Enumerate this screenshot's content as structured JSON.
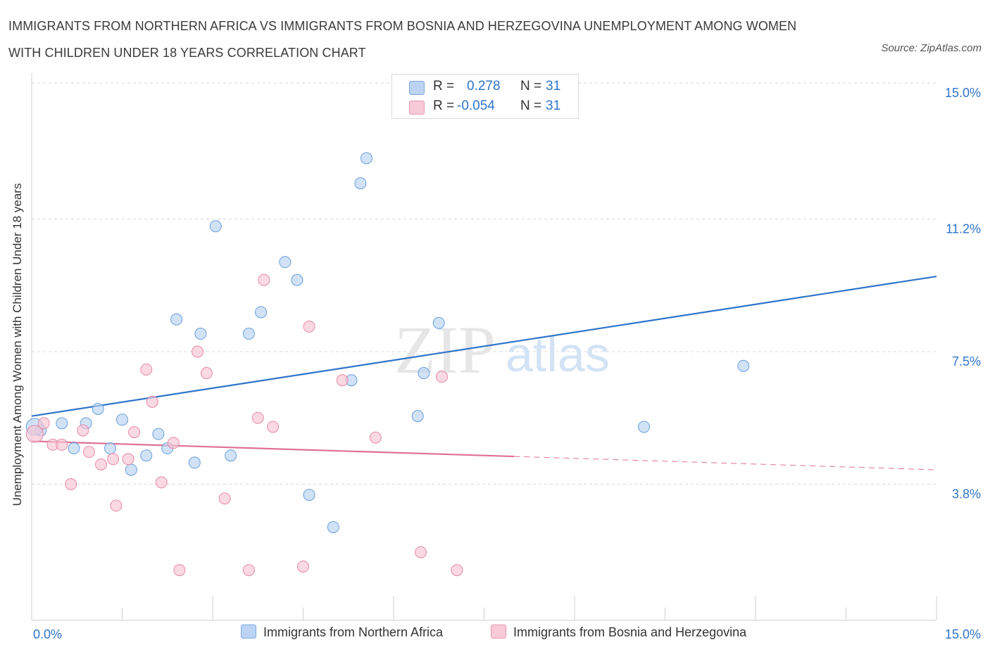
{
  "title_line1": "IMMIGRANTS FROM NORTHERN AFRICA VS IMMIGRANTS FROM BOSNIA AND HERZEGOVINA UNEMPLOYMENT AMONG WOMEN",
  "title_line2": "WITH CHILDREN UNDER 18 YEARS CORRELATION CHART",
  "source": "Source: ZipAtlas.com",
  "watermark": {
    "zip": "ZIP",
    "atlas": "atlas"
  },
  "legend": {
    "rows": [
      {
        "r_label": "R =",
        "r_value": "0.278",
        "n_label": "N =",
        "n_value": "31",
        "color": "#aac8f0"
      },
      {
        "r_label": "R =",
        "r_value": "-0.054",
        "n_label": "N =",
        "n_value": "31",
        "color": "#f5b8cb"
      }
    ]
  },
  "colors": {
    "blue_fill": "#b9d2f2",
    "blue_stroke": "#6a9fd8",
    "blue_line": "#2e74c9",
    "pink_fill": "#f7c5d4",
    "pink_stroke": "#e58aa8",
    "pink_line": "#e06f96",
    "grid": "#d8d8d8",
    "axis_text": "#2e74c9"
  },
  "chart_data": {
    "type": "scatter",
    "title": "IMMIGRANTS FROM NORTHERN AFRICA VS IMMIGRANTS FROM BOSNIA AND HERZEGOVINA UNEMPLOYMENT AMONG WOMEN WITH CHILDREN UNDER 18 YEARS CORRELATION CHART",
    "xlabel": "",
    "ylabel": "Unemployment Among Women with Children Under 18 years",
    "xlim": [
      0,
      15
    ],
    "ylim": [
      0,
      15
    ],
    "x_tick_labels": [
      "0.0%",
      "15.0%"
    ],
    "y_ticks": [
      3.8,
      7.5,
      11.2,
      15.0
    ],
    "y_tick_labels": [
      "3.8%",
      "7.5%",
      "11.2%",
      "15.0%"
    ],
    "grid": true,
    "legend_position": "top-center",
    "series": [
      {
        "name": "Immigrants from Northern Africa",
        "color": "blue",
        "points": [
          [
            0.15,
            5.3
          ],
          [
            0.5,
            5.5
          ],
          [
            0.7,
            4.8
          ],
          [
            0.9,
            5.5
          ],
          [
            1.1,
            5.9
          ],
          [
            1.3,
            4.8
          ],
          [
            1.5,
            5.6
          ],
          [
            1.65,
            4.2
          ],
          [
            1.9,
            4.6
          ],
          [
            2.1,
            5.2
          ],
          [
            2.25,
            4.8
          ],
          [
            2.4,
            8.4
          ],
          [
            2.7,
            4.4
          ],
          [
            2.8,
            8.0
          ],
          [
            3.05,
            11.0
          ],
          [
            3.3,
            4.6
          ],
          [
            3.6,
            8.0
          ],
          [
            3.8,
            8.6
          ],
          [
            4.2,
            10.0
          ],
          [
            4.4,
            9.5
          ],
          [
            4.6,
            3.5
          ],
          [
            5.0,
            2.6
          ],
          [
            5.3,
            6.7
          ],
          [
            5.45,
            12.2
          ],
          [
            5.55,
            12.9
          ],
          [
            6.4,
            5.7
          ],
          [
            6.5,
            6.9
          ],
          [
            6.75,
            8.3
          ],
          [
            10.15,
            5.4
          ],
          [
            11.8,
            7.1
          ],
          [
            0.05,
            5.4
          ]
        ],
        "trend": {
          "x": [
            0,
            15
          ],
          "y": [
            5.7,
            9.6
          ]
        }
      },
      {
        "name": "Immigrants from Bosnia and Herzegovina",
        "color": "pink",
        "points": [
          [
            0.05,
            5.2
          ],
          [
            0.2,
            5.5
          ],
          [
            0.35,
            4.9
          ],
          [
            0.5,
            4.9
          ],
          [
            0.65,
            3.8
          ],
          [
            0.85,
            5.3
          ],
          [
            0.95,
            4.7
          ],
          [
            1.15,
            4.35
          ],
          [
            1.35,
            4.5
          ],
          [
            1.4,
            3.2
          ],
          [
            1.6,
            4.5
          ],
          [
            1.7,
            5.25
          ],
          [
            1.9,
            7.0
          ],
          [
            2.0,
            6.1
          ],
          [
            2.15,
            3.85
          ],
          [
            2.35,
            4.95
          ],
          [
            2.45,
            1.4
          ],
          [
            2.75,
            7.5
          ],
          [
            2.9,
            6.9
          ],
          [
            3.2,
            3.4
          ],
          [
            3.6,
            1.4
          ],
          [
            3.75,
            5.65
          ],
          [
            3.85,
            9.5
          ],
          [
            4.0,
            5.4
          ],
          [
            4.5,
            1.5
          ],
          [
            4.6,
            8.2
          ],
          [
            5.15,
            6.7
          ],
          [
            5.7,
            5.1
          ],
          [
            6.45,
            1.9
          ],
          [
            6.8,
            6.8
          ],
          [
            7.05,
            1.4
          ]
        ],
        "trend": {
          "x": [
            0,
            15
          ],
          "y": [
            5.0,
            4.2
          ],
          "solid_until_x": 8.0
        }
      }
    ]
  }
}
